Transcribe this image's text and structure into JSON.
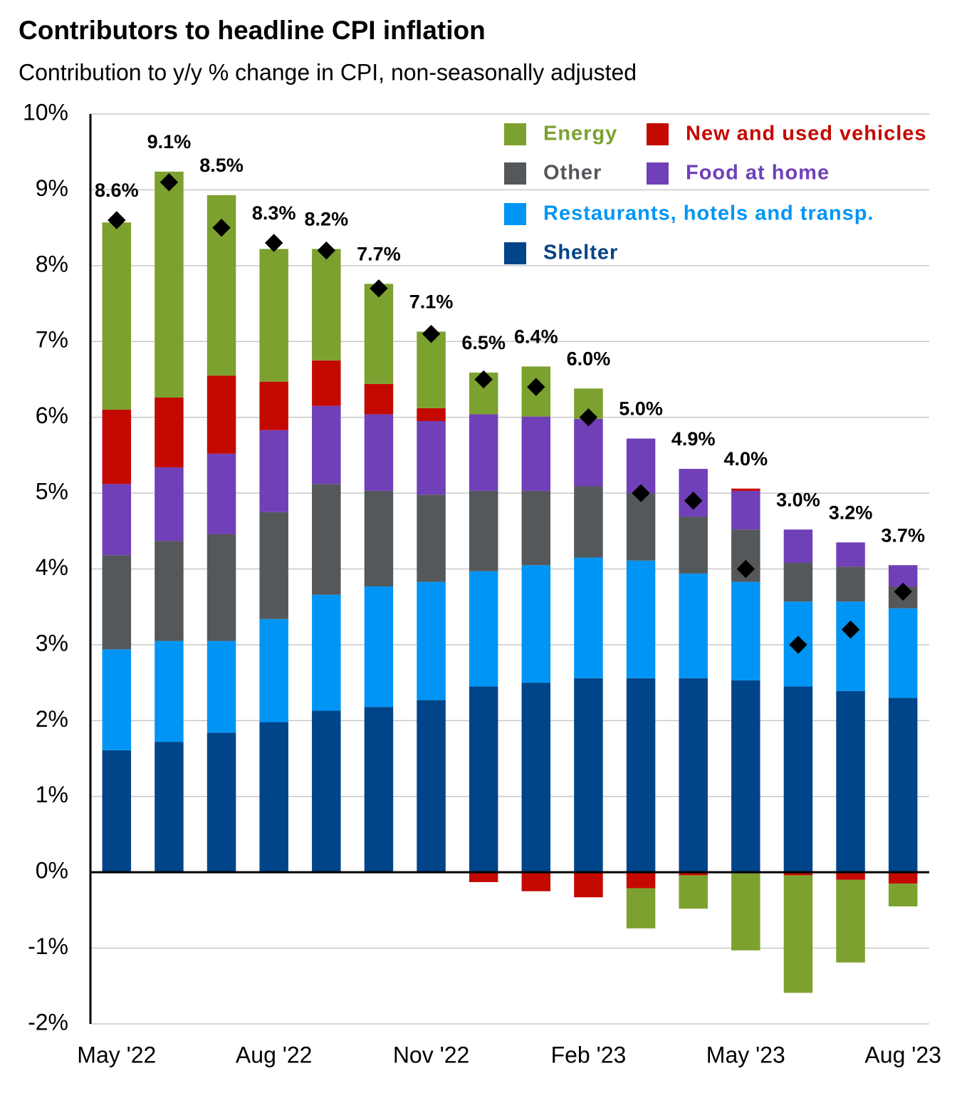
{
  "chart_data": {
    "type": "stacked_bar",
    "title": "Contributors to headline CPI inflation",
    "subtitle": "Contribution to y/y % change in CPI, non-seasonally adjusted",
    "categories": [
      "May '22",
      null,
      null,
      "Aug '22",
      null,
      null,
      "Nov '22",
      null,
      null,
      "Feb '23",
      null,
      null,
      "May '23",
      null,
      null,
      "Aug '23"
    ],
    "series": [
      {
        "name": "Shelter",
        "color": "#004489",
        "values": [
          1.61,
          1.72,
          1.84,
          1.98,
          2.13,
          2.18,
          2.27,
          2.45,
          2.5,
          2.56,
          2.56,
          2.56,
          2.53,
          2.45,
          2.39,
          2.3
        ]
      },
      {
        "name": "Restaurants, hotels and transp.",
        "color": "#0095f5",
        "values": [
          1.33,
          1.33,
          1.21,
          1.36,
          1.53,
          1.59,
          1.56,
          1.52,
          1.55,
          1.59,
          1.55,
          1.38,
          1.3,
          1.12,
          1.18,
          1.18
        ]
      },
      {
        "name": "Other",
        "color": "#55585b",
        "values": [
          1.24,
          1.32,
          1.41,
          1.41,
          1.46,
          1.26,
          1.15,
          1.06,
          0.98,
          0.94,
          0.89,
          0.75,
          0.69,
          0.51,
          0.46,
          0.29
        ]
      },
      {
        "name": "Food at home",
        "color": "#7040b8",
        "values": [
          0.94,
          0.97,
          1.06,
          1.08,
          1.03,
          1.01,
          0.97,
          1.01,
          0.98,
          0.89,
          0.72,
          0.63,
          0.51,
          0.44,
          0.32,
          0.28
        ]
      },
      {
        "name": "New and used vehicles",
        "color": "#c40a00",
        "values": [
          0.98,
          0.92,
          1.03,
          0.64,
          0.6,
          0.4,
          0.17,
          -0.13,
          -0.25,
          -0.33,
          -0.21,
          -0.04,
          0.03,
          -0.04,
          -0.1,
          -0.15
        ]
      },
      {
        "name": "Energy",
        "color": "#7ca12f",
        "values": [
          2.47,
          2.98,
          2.38,
          1.75,
          1.47,
          1.32,
          1.01,
          0.55,
          0.66,
          0.4,
          -0.53,
          -0.44,
          -1.03,
          -1.55,
          -1.09,
          -0.3
        ]
      }
    ],
    "headline": {
      "color": "#000000",
      "values": [
        8.6,
        9.1,
        8.5,
        8.3,
        8.2,
        7.7,
        7.1,
        6.5,
        6.4,
        6.0,
        5.0,
        4.9,
        4.0,
        3.0,
        3.2,
        3.7
      ],
      "value_labels": [
        "8.6%",
        "9.1%",
        "8.5%",
        "8.3%",
        "8.2%",
        "7.7%",
        "7.1%",
        "6.5%",
        "6.4%",
        "6.0%",
        "5.0%",
        "4.9%",
        "4.0%",
        "3.0%",
        "3.2%",
        "3.7%"
      ]
    },
    "ylim": [
      -2,
      10
    ],
    "yticks": [
      {
        "value": -2,
        "label": "-2%"
      },
      {
        "value": -1,
        "label": "-1%"
      },
      {
        "value": 0,
        "label": "0%"
      },
      {
        "value": 1,
        "label": "1%"
      },
      {
        "value": 2,
        "label": "2%"
      },
      {
        "value": 3,
        "label": "3%"
      },
      {
        "value": 4,
        "label": "4%"
      },
      {
        "value": 5,
        "label": "5%"
      },
      {
        "value": 6,
        "label": "6%"
      },
      {
        "value": 7,
        "label": "7%"
      },
      {
        "value": 8,
        "label": "8%"
      },
      {
        "value": 9,
        "label": "9%"
      },
      {
        "value": 10,
        "label": "10%"
      }
    ],
    "grid": true,
    "legend": "top-right"
  }
}
